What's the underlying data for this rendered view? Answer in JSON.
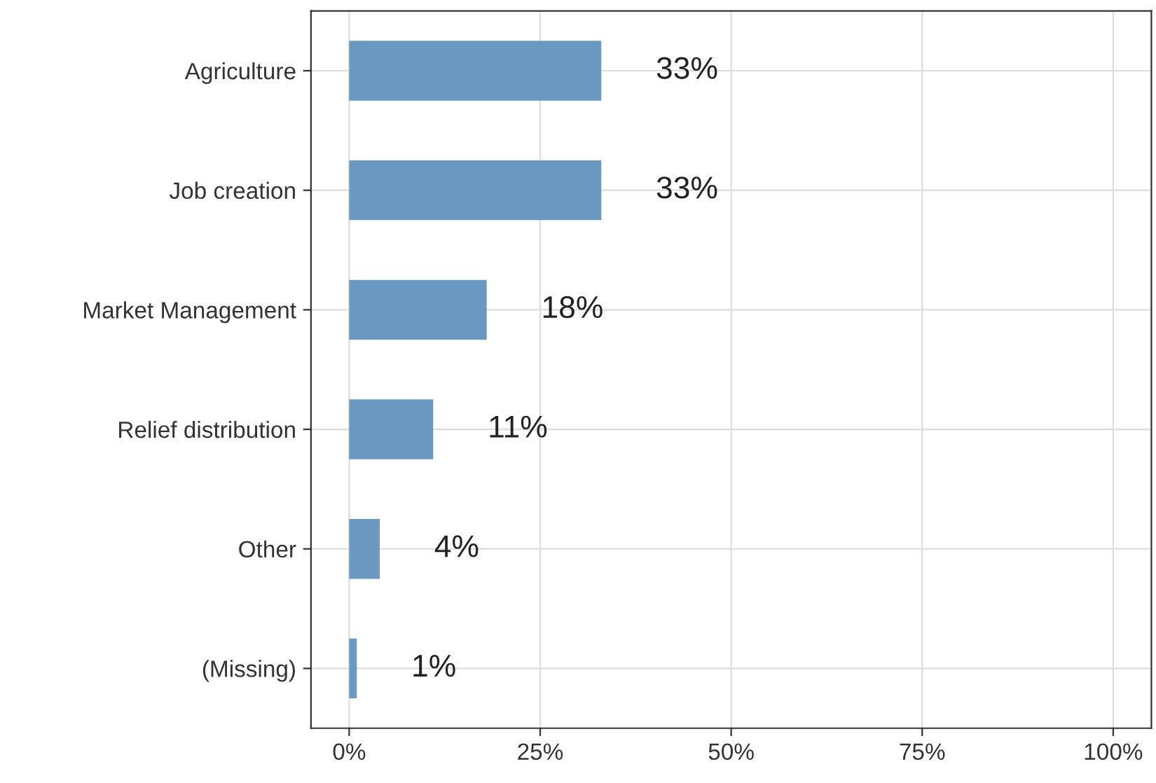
{
  "chart_data": {
    "type": "bar",
    "orientation": "horizontal",
    "categories": [
      "Agriculture",
      "Job creation",
      "Market Management",
      "Relief distribution",
      "Other",
      "(Missing)"
    ],
    "values": [
      33,
      33,
      18,
      11,
      4,
      1
    ],
    "value_labels": [
      "33%",
      "33%",
      "18%",
      "11%",
      "4%",
      "1%"
    ],
    "color": "#6b98c0",
    "xlim": [
      -5,
      105
    ],
    "xticks": [
      {
        "value": 0,
        "label": "0%"
      },
      {
        "value": 25,
        "label": "25%"
      },
      {
        "value": 50,
        "label": "50%"
      },
      {
        "value": 75,
        "label": "75%"
      },
      {
        "value": 100,
        "label": "100%"
      }
    ],
    "grid": true
  }
}
